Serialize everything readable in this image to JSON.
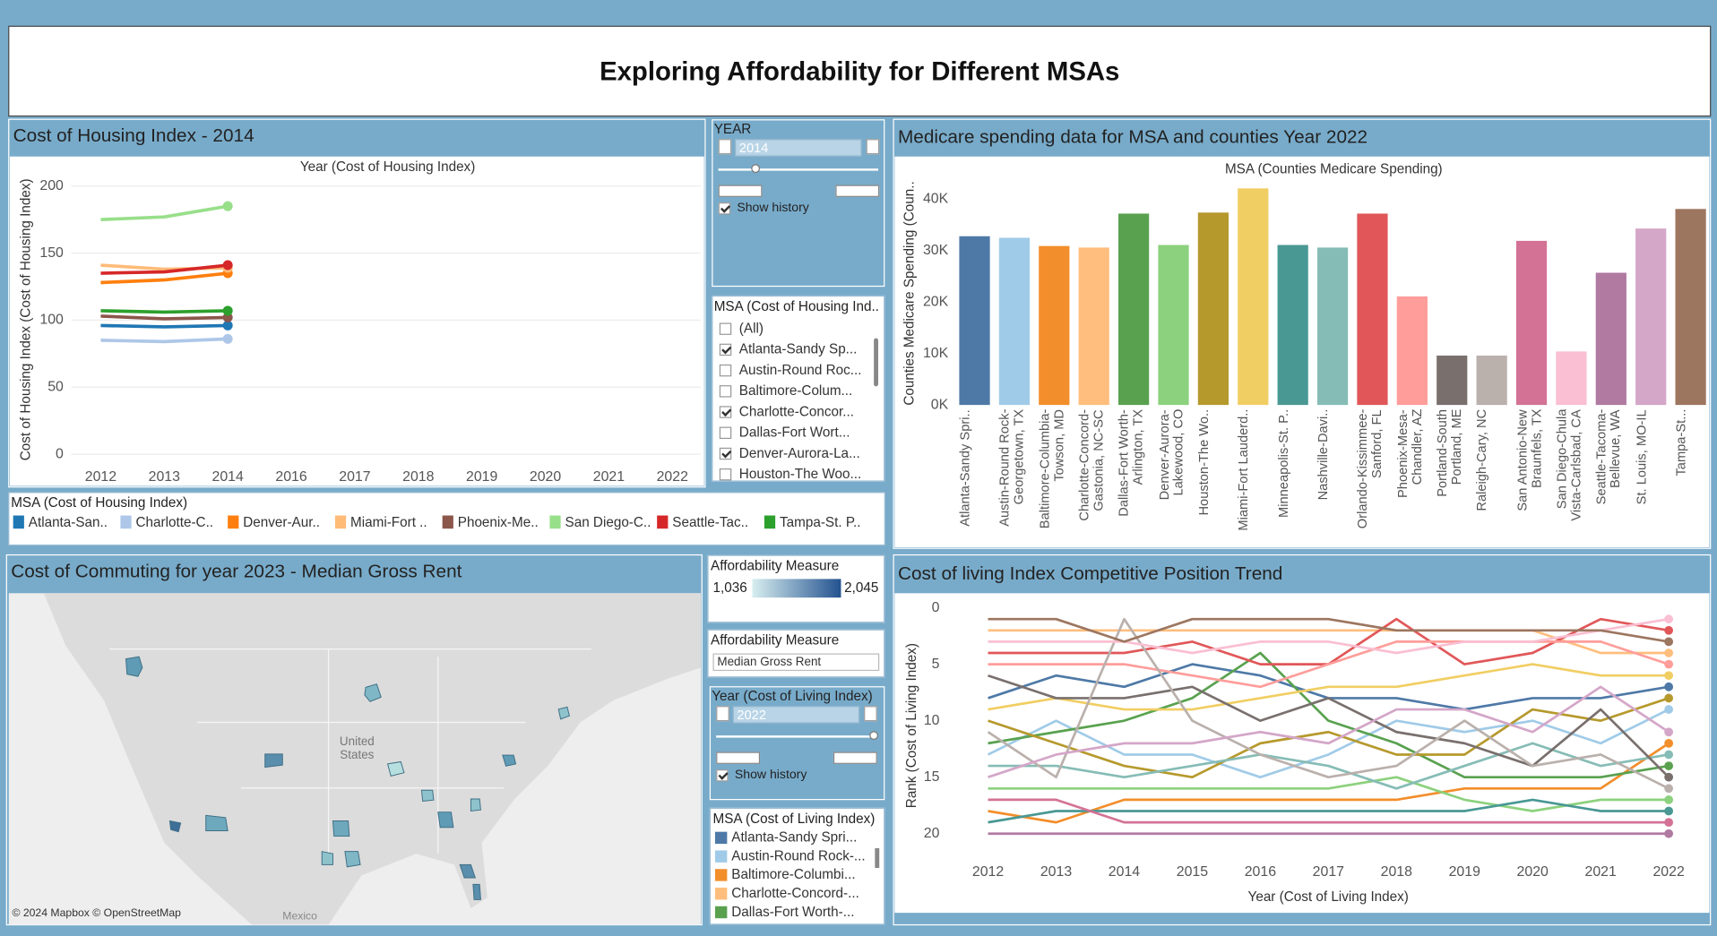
{
  "title": "Exploring Affordability for Different MSAs",
  "chart_data": [
    {
      "type": "line",
      "title": "Cost of Housing Index - 2014",
      "x_label": "Year (Cost of Housing Index)",
      "y_label": "Cost of Housing Index (Cost of Housing Index)",
      "legend_title": "MSA (Cost of Housing Index)",
      "categories": [
        "2012",
        "2013",
        "2014",
        "2016",
        "2017",
        "2018",
        "2019",
        "2020",
        "2021",
        "2022"
      ],
      "ylim": [
        0,
        200
      ],
      "yticks": [
        0,
        50,
        100,
        150,
        200
      ],
      "grid": true,
      "series": [
        {
          "name": "Atlanta-San..",
          "color": "#1f77b4",
          "values": [
            96,
            95,
            96,
            null,
            null,
            null,
            null,
            null,
            null,
            null
          ]
        },
        {
          "name": "Charlotte-C..",
          "color": "#aec7e8",
          "values": [
            85,
            84,
            86,
            null,
            null,
            null,
            null,
            null,
            null,
            null
          ]
        },
        {
          "name": "Denver-Aur..",
          "color": "#ff7f0e",
          "values": [
            128,
            130,
            135,
            null,
            null,
            null,
            null,
            null,
            null,
            null
          ]
        },
        {
          "name": "Miami-Fort ..",
          "color": "#ffbb78",
          "values": [
            141,
            138,
            139,
            null,
            null,
            null,
            null,
            null,
            null,
            null
          ]
        },
        {
          "name": "Phoenix-Me..",
          "color": "#8c564b",
          "values": [
            103,
            101,
            102,
            null,
            null,
            null,
            null,
            null,
            null,
            null
          ]
        },
        {
          "name": "San Diego-C..",
          "color": "#98df8a",
          "values": [
            175,
            177,
            185,
            null,
            null,
            null,
            null,
            null,
            null,
            null
          ]
        },
        {
          "name": "Seattle-Tac..",
          "color": "#d62728",
          "values": [
            135,
            136,
            141,
            null,
            null,
            null,
            null,
            null,
            null,
            null
          ]
        },
        {
          "name": "Tampa-St. P..",
          "color": "#2ca02c",
          "values": [
            107,
            106,
            107,
            null,
            null,
            null,
            null,
            null,
            null,
            null
          ]
        }
      ]
    },
    {
      "type": "bar",
      "title": "Medicare spending data for MSA and counties Year 2022",
      "x_label": "MSA (Counties Medicare Spending)",
      "y_label": "Counties Medicare Spending (Coun..",
      "categories": [
        "Atlanta-Sandy Spri..",
        "Austin-Round Rock-Georgetown, TX",
        "Baltimore-Columbia-Towson, MD",
        "Charlotte-Concord-Gastonia, NC-SC",
        "Dallas-Fort Worth-Arlington, TX",
        "Denver-Aurora-Lakewood, CO",
        "Houston-The Wo..",
        "Miami-Fort Lauderd..",
        "Minneapolis-St. P..",
        "Nashville-Davi..",
        "Orlando-Kissimmee-Sanford, FL",
        "Phoenix-Mesa-Chandler, AZ",
        "Portland-South Portland, ME",
        "Raleigh-Cary, NC",
        "San Antonio-New Braunfels, TX",
        "San Diego-Chula Vista-Carlsbad, CA",
        "Seattle-Tacoma-Bellevue, WA",
        "St. Louis, MO-IL",
        "Tampa-St..."
      ],
      "values": [
        32800,
        32500,
        30900,
        30600,
        37200,
        31100,
        37400,
        42100,
        31100,
        30600,
        37200,
        21100,
        9600,
        9600,
        31900,
        10400,
        25700,
        34300,
        38100
      ],
      "colors": [
        "#4e79a7",
        "#a0cbe8",
        "#f28e2b",
        "#ffbe7d",
        "#59a14f",
        "#8cd17d",
        "#b6992d",
        "#f1ce63",
        "#499894",
        "#86bcb6",
        "#e15759",
        "#ff9d9a",
        "#79706e",
        "#bab0ac",
        "#d37295",
        "#fabfd2",
        "#b07aa1",
        "#d4a6c8",
        "#9d7660"
      ],
      "ylim": [
        0,
        40000
      ],
      "yticks": [
        {
          "value": 0,
          "label": "0K"
        },
        {
          "value": 10000,
          "label": "10K"
        },
        {
          "value": 20000,
          "label": "20K"
        },
        {
          "value": 30000,
          "label": "30K"
        },
        {
          "value": 40000,
          "label": "40K"
        }
      ]
    },
    {
      "type": "line",
      "title": "Cost of living Index Competitive Position Trend",
      "x_label": "Year (Cost of Living Index)",
      "y_label": "Rank (Cost of Living Index)",
      "legend_title": "MSA (Cost of Living Index)",
      "x": [
        2012,
        2013,
        2014,
        2015,
        2016,
        2017,
        2018,
        2019,
        2020,
        2021,
        2022
      ],
      "xlim": [
        2011.4,
        2022.5
      ],
      "xticks": [
        2012,
        2013,
        2014,
        2015,
        2016,
        2017,
        2018,
        2019,
        2020,
        2021,
        2022
      ],
      "ylim": [
        21,
        -1
      ],
      "yticks": [
        0,
        5,
        10,
        15,
        20
      ],
      "series": [
        {
          "name": "Atlanta-Sandy Spri...",
          "color": "#4e79a7",
          "values": [
            8,
            6,
            7,
            5,
            6,
            8,
            8,
            9,
            8,
            8,
            7
          ]
        },
        {
          "name": "Austin-Round Rock-...",
          "color": "#a0cbe8",
          "values": [
            13,
            10,
            13,
            13,
            15,
            13,
            10,
            11,
            10,
            12,
            9
          ]
        },
        {
          "name": "Baltimore-Columbi...",
          "color": "#f28e2b",
          "values": [
            18,
            19,
            17,
            17,
            17,
            17,
            17,
            16,
            16,
            16,
            12
          ]
        },
        {
          "name": "Charlotte-Concord-...",
          "color": "#ffbe7d",
          "values": [
            2,
            2,
            2,
            2,
            2,
            2,
            2,
            2,
            2,
            4,
            4
          ]
        },
        {
          "name": "Dallas-Fort Worth-...",
          "color": "#59a14f",
          "values": [
            12,
            11,
            10,
            8,
            4,
            10,
            12,
            15,
            15,
            15,
            14
          ]
        },
        {
          "color": "#8cd17d",
          "values": [
            16,
            16,
            16,
            16,
            16,
            16,
            15,
            17,
            18,
            17,
            17
          ]
        },
        {
          "color": "#b6992d",
          "values": [
            10,
            12,
            14,
            15,
            12,
            11,
            13,
            13,
            9,
            10,
            8
          ]
        },
        {
          "color": "#f1ce63",
          "values": [
            9,
            8,
            9,
            9,
            8,
            7,
            7,
            6,
            5,
            6,
            6
          ]
        },
        {
          "color": "#499894",
          "values": [
            19,
            18,
            18,
            18,
            18,
            18,
            18,
            18,
            17,
            18,
            18
          ]
        },
        {
          "color": "#86bcb6",
          "values": [
            14,
            14,
            15,
            14,
            13,
            14,
            16,
            14,
            12,
            14,
            13
          ]
        },
        {
          "color": "#e15759",
          "values": [
            4,
            4,
            4,
            3,
            5,
            5,
            1,
            5,
            4,
            1,
            2
          ]
        },
        {
          "color": "#ff9d9a",
          "values": [
            5,
            5,
            5,
            6,
            7,
            5,
            3,
            3,
            3,
            3,
            5
          ]
        },
        {
          "color": "#79706e",
          "values": [
            6,
            8,
            8,
            7,
            10,
            8,
            11,
            12,
            14,
            9,
            15
          ]
        },
        {
          "color": "#bab0ac",
          "values": [
            11,
            15,
            1,
            10,
            13,
            15,
            14,
            10,
            14,
            13,
            16
          ]
        },
        {
          "color": "#d37295",
          "values": [
            17,
            17,
            19,
            19,
            19,
            19,
            19,
            19,
            19,
            19,
            19
          ]
        },
        {
          "color": "#fabfd2",
          "values": [
            3,
            3,
            3,
            4,
            3,
            3,
            4,
            3,
            3,
            2,
            1
          ]
        },
        {
          "color": "#b07aa1",
          "values": [
            20,
            20,
            20,
            20,
            20,
            20,
            20,
            20,
            20,
            20,
            20
          ]
        },
        {
          "color": "#d4a6c8",
          "values": [
            15,
            13,
            12,
            12,
            11,
            12,
            9,
            9,
            11,
            7,
            11
          ]
        },
        {
          "color": "#9d7660",
          "values": [
            1,
            1,
            3,
            1,
            1,
            1,
            2,
            2,
            2,
            2,
            3
          ]
        }
      ]
    }
  ],
  "year_filter": {
    "label": "YEAR",
    "value": "2014",
    "history": "Show history",
    "checked": true
  },
  "msa_filter": {
    "title": "MSA (Cost of Housing Ind..",
    "items": [
      {
        "label": "(All)",
        "checked": false
      },
      {
        "label": "Atlanta-Sandy Sp...",
        "checked": true
      },
      {
        "label": "Austin-Round Roc...",
        "checked": false
      },
      {
        "label": "Baltimore-Colum...",
        "checked": false
      },
      {
        "label": "Charlotte-Concor...",
        "checked": true
      },
      {
        "label": "Dallas-Fort Wort...",
        "checked": false
      },
      {
        "label": "Denver-Aurora-La...",
        "checked": true
      },
      {
        "label": "Houston-The Woo...",
        "checked": false
      }
    ]
  },
  "map": {
    "title": "Cost of Commuting for year 2023 - Median Gross Rent",
    "country": "United States",
    "neighbor": "Mexico",
    "attribution": "© 2024 Mapbox © OpenStreetMap"
  },
  "color_legend": {
    "title": "Affordability Measure",
    "range": [
      {
        "value": 1036,
        "label": "1,036"
      },
      {
        "value": 2045,
        "label": "2,045"
      }
    ],
    "colors": [
      "#d7eef0",
      "#23528f"
    ]
  },
  "measure_filter": {
    "title": "Affordability Measure",
    "value": "Median Gross Rent"
  },
  "living_year_filter": {
    "label": "Year (Cost of Living Index)",
    "value": "2022",
    "history": "Show history",
    "checked": true
  }
}
